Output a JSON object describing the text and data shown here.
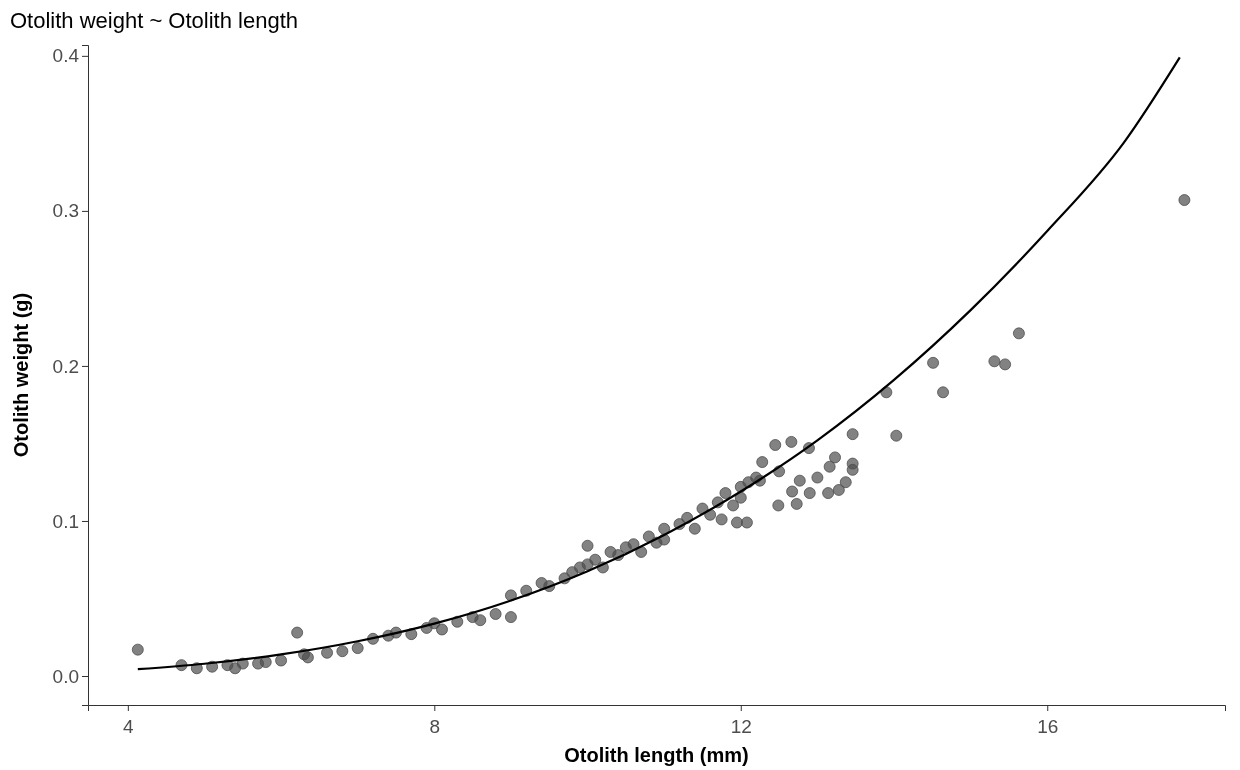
{
  "chart_data": {
    "type": "scatter",
    "title": "Otolith weight ~ Otolith length",
    "xlabel": "Otolith length (mm)",
    "ylabel": "Otolith weight (g)",
    "xlim": [
      3.48,
      18.32
    ],
    "xticks": [
      4,
      8,
      12,
      16
    ],
    "ylim": [
      -0.0187,
      0.407
    ],
    "yticks": [
      {
        "value": 0,
        "label": "0.0"
      },
      0.1,
      0.2,
      0.3,
      0.4
    ],
    "grid": false,
    "marker": "circle",
    "series": [
      {
        "color": "#4d4d4d",
        "x": [
          4.13,
          4.7,
          4.9,
          5.1,
          5.3,
          5.4,
          5.5,
          5.7,
          5.8,
          6.0,
          6.21,
          6.3,
          6.35,
          6.6,
          6.8,
          7.0,
          7.2,
          7.4,
          7.5,
          7.7,
          7.9,
          8.0,
          8.1,
          8.3,
          8.5,
          8.6,
          8.8,
          9.0,
          9.0,
          9.2,
          9.4,
          9.5,
          9.7,
          9.8,
          9.9,
          10.0,
          10.0,
          10.1,
          10.2,
          10.3,
          10.4,
          10.5,
          10.6,
          10.7,
          10.8,
          10.9,
          11.0,
          11.0,
          11.2,
          11.3,
          11.4,
          11.5,
          11.6,
          11.7,
          11.75,
          11.8,
          11.9,
          11.95,
          12.0,
          12.0,
          12.08,
          12.1,
          12.2,
          12.25,
          12.28,
          12.45,
          12.49,
          12.5,
          12.66,
          12.67,
          12.73,
          12.77,
          12.89,
          12.9,
          13.0,
          13.14,
          13.16,
          13.23,
          13.28,
          13.37,
          13.46,
          13.46,
          13.46,
          13.9,
          14.03,
          14.51,
          14.64,
          15.31,
          15.45,
          15.63,
          17.79
        ],
        "values": [
          0.017,
          0.007,
          0.005,
          0.006,
          0.007,
          0.005,
          0.008,
          0.008,
          0.009,
          0.01,
          0.028,
          0.014,
          0.012,
          0.015,
          0.016,
          0.018,
          0.024,
          0.026,
          0.028,
          0.027,
          0.031,
          0.034,
          0.03,
          0.035,
          0.038,
          0.036,
          0.04,
          0.038,
          0.052,
          0.055,
          0.06,
          0.058,
          0.063,
          0.067,
          0.07,
          0.084,
          0.072,
          0.075,
          0.07,
          0.08,
          0.078,
          0.083,
          0.085,
          0.08,
          0.09,
          0.086,
          0.095,
          0.088,
          0.098,
          0.102,
          0.095,
          0.108,
          0.104,
          0.112,
          0.101,
          0.118,
          0.11,
          0.099,
          0.122,
          0.115,
          0.099,
          0.125,
          0.128,
          0.126,
          0.138,
          0.149,
          0.11,
          0.132,
          0.151,
          0.119,
          0.111,
          0.126,
          0.147,
          0.118,
          0.128,
          0.118,
          0.135,
          0.141,
          0.12,
          0.125,
          0.133,
          0.137,
          0.156,
          0.183,
          0.155,
          0.202,
          0.183,
          0.203,
          0.201,
          0.221,
          0.307
        ]
      },
      {
        "type": "line",
        "color": "#000000",
        "marker": "none",
        "x": [
          4.13,
          5,
          6,
          7,
          8,
          9,
          10,
          11,
          12,
          13,
          14,
          15,
          16,
          17,
          17.73
        ],
        "values": [
          0.0044,
          0.0079,
          0.0139,
          0.0224,
          0.0338,
          0.0487,
          0.0676,
          0.091,
          0.119,
          0.152,
          0.191,
          0.236,
          0.287,
          0.344,
          0.399
        ]
      }
    ]
  }
}
